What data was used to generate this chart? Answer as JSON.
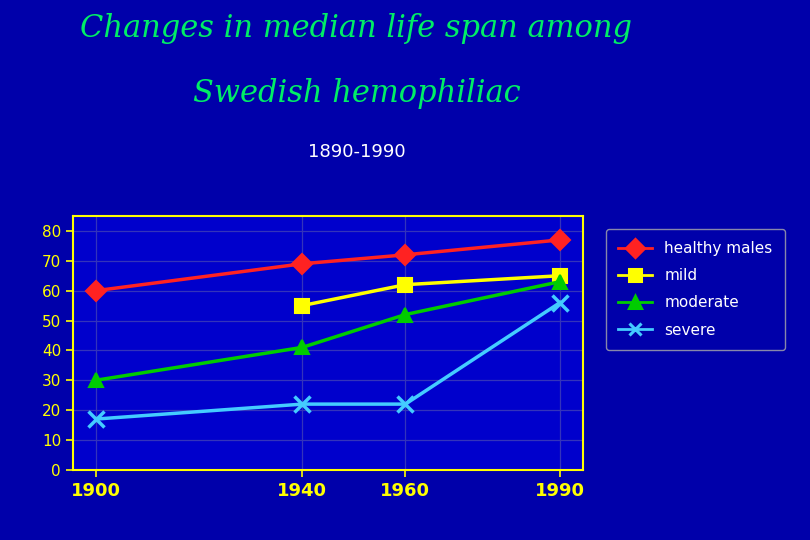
{
  "title_line1": "Changes in median life span among",
  "title_line2": "Swedish hemophiliac",
  "subtitle": "1890-1990",
  "background_color": "#0000aa",
  "plot_bg_color": "#0000cc",
  "title_color": "#00ee66",
  "subtitle_color": "#ffffff",
  "x_values": [
    1900,
    1940,
    1960,
    1990
  ],
  "series": [
    {
      "name": "healthy males",
      "color": "#ff2222",
      "marker": "D",
      "data": [
        60,
        69,
        72,
        77
      ]
    },
    {
      "name": "mild",
      "color": "#ffff00",
      "marker": "s",
      "data": [
        null,
        55,
        62,
        65
      ]
    },
    {
      "name": "moderate",
      "color": "#00cc00",
      "marker": "^",
      "data": [
        30,
        41,
        52,
        63
      ]
    },
    {
      "name": "severe",
      "color": "#44ccff",
      "marker": "x",
      "data": [
        17,
        22,
        22,
        56
      ]
    }
  ],
  "ylim": [
    0,
    85
  ],
  "yticks": [
    0,
    10,
    20,
    30,
    40,
    50,
    60,
    70,
    80
  ],
  "xtick_labels": [
    "1900",
    "1940",
    "1960",
    "1990"
  ],
  "axis_color": "#ffff00",
  "tick_color": "#ffff00",
  "grid_color": "#3333bb",
  "legend_bg": "#0000aa",
  "legend_text_color": "#ffffff",
  "legend_edge_color": "#aaaaaa",
  "title_fontsize": 22,
  "subtitle_fontsize": 13
}
